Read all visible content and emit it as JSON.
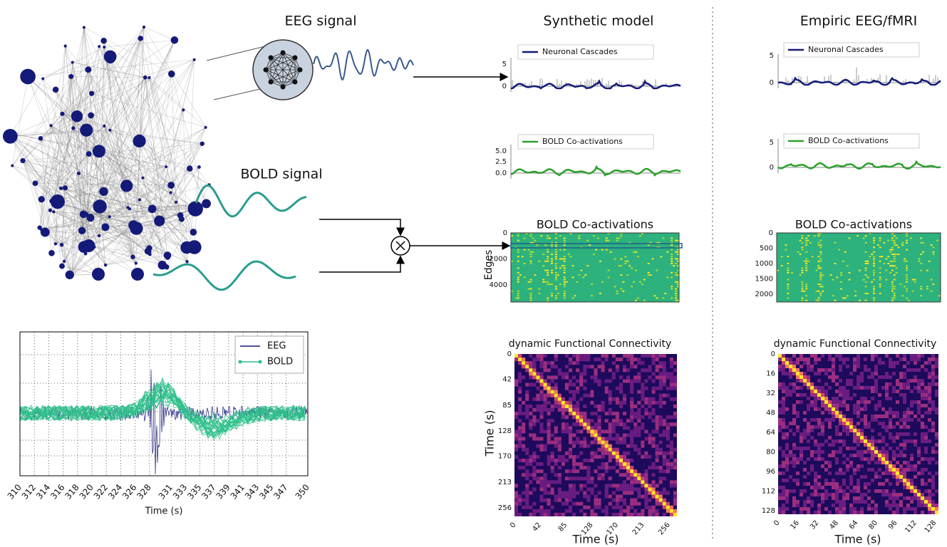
{
  "network": {
    "eeg_label": "EEG signal",
    "bold_label": "BOLD signal"
  },
  "synthetic": {
    "title": "Synthetic model",
    "cascades": {
      "legend": "Neuronal Cascades",
      "yticks": [
        "5",
        "0"
      ]
    },
    "bold": {
      "legend": "BOLD Co-activations",
      "yticks": [
        "5.0",
        "2.5",
        "0.0"
      ]
    },
    "coactivations": {
      "title": "BOLD Co-activations",
      "ylabel": "Edges",
      "yticks": [
        "0",
        "2000",
        "4000"
      ]
    },
    "dfc": {
      "title": "dynamic Functional Connectivity",
      "ylabel": "Time (s)",
      "xlabel": "Time (s)",
      "ticks": [
        "0",
        "42",
        "85",
        "128",
        "170",
        "213",
        "256"
      ]
    }
  },
  "empiric": {
    "title": "Empiric EEG/fMRI",
    "cascades": {
      "legend": "Neuronal Cascades",
      "yticks": [
        "5",
        "0"
      ]
    },
    "bold": {
      "legend": "BOLD Co-activations",
      "yticks": [
        "5",
        "0"
      ]
    },
    "coactivations": {
      "title": "BOLD Co-activations",
      "yticks": [
        "0",
        "500",
        "1000",
        "1500",
        "2000"
      ]
    },
    "dfc": {
      "title": "dynamic Functional Connectivity",
      "xlabel": "Time (s)",
      "ticks": [
        "0",
        "16",
        "32",
        "48",
        "64",
        "80",
        "96",
        "112",
        "128"
      ]
    }
  },
  "timeseries": {
    "legend": [
      "EEG",
      "BOLD"
    ],
    "xlabel": "Time (s)",
    "xticks": [
      "310",
      "312",
      "314",
      "316",
      "318",
      "320",
      "322",
      "324",
      "326",
      "328",
      "331",
      "333",
      "335",
      "337",
      "339",
      "341",
      "343",
      "345",
      "347",
      "350"
    ]
  }
}
